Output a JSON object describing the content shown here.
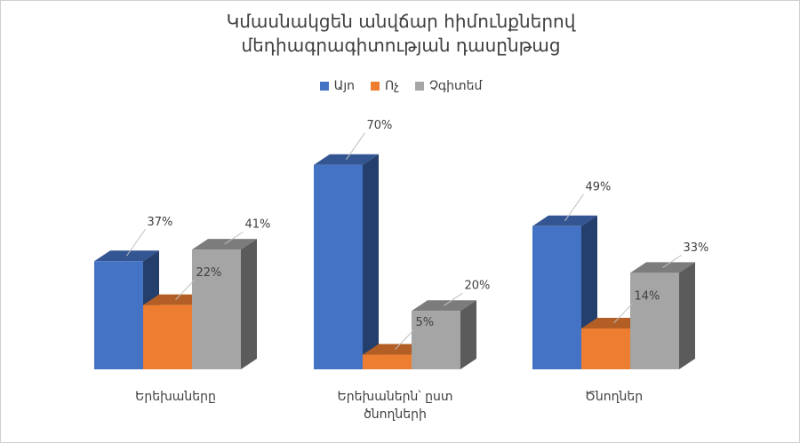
{
  "chart_data": {
    "type": "bar3d",
    "title": "Կմասնակցեն անվճար հիմունքներով մեդիագրագիտության դասընթաց",
    "categories": [
      "Երեխաները",
      "Երեխաներն՝ ըստ ծնողների",
      "Ծնողներ"
    ],
    "series": [
      {
        "name": "Այո",
        "color": "#4472c4",
        "values": [
          37,
          70,
          49
        ],
        "value_labels": [
          "37%",
          "70%",
          "49%"
        ]
      },
      {
        "name": "Ոչ",
        "color": "#ed7d31",
        "values": [
          22,
          5,
          14
        ],
        "value_labels": [
          "22%",
          "5%",
          "14%"
        ]
      },
      {
        "name": "Չգիտեմ",
        "color": "#a5a5a5",
        "values": [
          41,
          20,
          33
        ],
        "value_labels": [
          "41%",
          "20%",
          "33%"
        ]
      }
    ],
    "legend": "top"
  }
}
